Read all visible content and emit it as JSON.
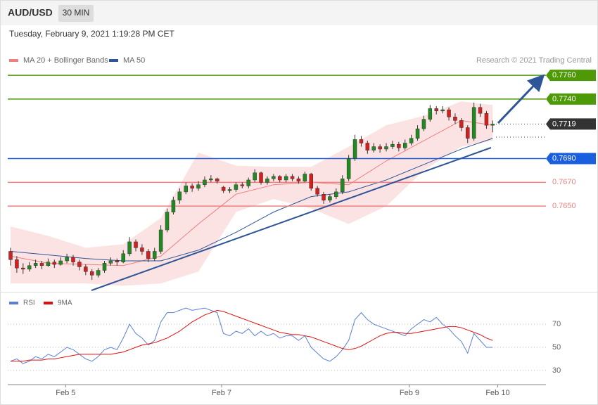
{
  "header": {
    "symbol": "AUD/USD",
    "timeframe": "30 MIN",
    "timestamp": "Tuesday, February 9, 2021 1:19:28 PM CET"
  },
  "chart_data": [
    {
      "type": "candlestick",
      "credit": "Research © 2021 Trading Central",
      "xlim": [
        -0.45,
        85.5
      ],
      "ylim": [
        0.7578,
        0.7802
      ],
      "up_color": "#1f8a1f",
      "down_color": "#d62020",
      "ohlc": [
        [
          0.7612,
          0.7615,
          0.76,
          0.7605
        ],
        [
          0.7605,
          0.7608,
          0.7594,
          0.7598
        ],
        [
          0.7598,
          0.7602,
          0.7593,
          0.7597
        ],
        [
          0.7597,
          0.7603,
          0.7595,
          0.76
        ],
        [
          0.76,
          0.7605,
          0.7598,
          0.7602
        ],
        [
          0.7602,
          0.7604,
          0.7597,
          0.76
        ],
        [
          0.76,
          0.7606,
          0.7599,
          0.7603
        ],
        [
          0.7603,
          0.7605,
          0.7598,
          0.7601
        ],
        [
          0.7601,
          0.7607,
          0.76,
          0.7604
        ],
        [
          0.7604,
          0.761,
          0.7602,
          0.7607
        ],
        [
          0.7607,
          0.7609,
          0.76,
          0.7603
        ],
        [
          0.7603,
          0.7605,
          0.7596,
          0.7599
        ],
        [
          0.7599,
          0.7601,
          0.7592,
          0.7595
        ],
        [
          0.7595,
          0.7597,
          0.7588,
          0.7592
        ],
        [
          0.7592,
          0.7598,
          0.759,
          0.7596
        ],
        [
          0.7596,
          0.7604,
          0.7594,
          0.7602
        ],
        [
          0.7602,
          0.7607,
          0.76,
          0.7604
        ],
        [
          0.7604,
          0.7606,
          0.76,
          0.7603
        ],
        [
          0.7603,
          0.7613,
          0.7602,
          0.761
        ],
        [
          0.761,
          0.7624,
          0.7608,
          0.762
        ],
        [
          0.762,
          0.7622,
          0.7612,
          0.7615
        ],
        [
          0.7615,
          0.7618,
          0.7609,
          0.7612
        ],
        [
          0.7612,
          0.7614,
          0.7603,
          0.7606
        ],
        [
          0.7606,
          0.7615,
          0.7604,
          0.7612
        ],
        [
          0.7612,
          0.7634,
          0.761,
          0.763
        ],
        [
          0.763,
          0.7648,
          0.7628,
          0.7645
        ],
        [
          0.7645,
          0.7658,
          0.7643,
          0.7655
        ],
        [
          0.7655,
          0.7665,
          0.7652,
          0.7662
        ],
        [
          0.7662,
          0.767,
          0.766,
          0.7667
        ],
        [
          0.7667,
          0.7669,
          0.7662,
          0.7665
        ],
        [
          0.7665,
          0.7671,
          0.7663,
          0.7668
        ],
        [
          0.7668,
          0.7675,
          0.7666,
          0.7672
        ],
        [
          0.7672,
          0.7676,
          0.767,
          0.7673
        ],
        [
          0.7673,
          0.7674,
          0.7669,
          0.7671
        ],
        [
          0.7666,
          0.7667,
          0.7661,
          0.7663
        ],
        [
          0.7663,
          0.7666,
          0.7661,
          0.7664
        ],
        [
          0.7664,
          0.767,
          0.7662,
          0.7668
        ],
        [
          0.7668,
          0.767,
          0.7665,
          0.7667
        ],
        [
          0.7667,
          0.7674,
          0.7665,
          0.7672
        ],
        [
          0.7672,
          0.7681,
          0.767,
          0.7678
        ],
        [
          0.7678,
          0.7679,
          0.7668,
          0.767
        ],
        [
          0.767,
          0.7675,
          0.7668,
          0.7673
        ],
        [
          0.7673,
          0.7677,
          0.7671,
          0.7675
        ],
        [
          0.7675,
          0.7676,
          0.767,
          0.7672
        ],
        [
          0.7672,
          0.7677,
          0.767,
          0.7675
        ],
        [
          0.7675,
          0.7677,
          0.7671,
          0.7673
        ],
        [
          0.7673,
          0.7675,
          0.7669,
          0.7671
        ],
        [
          0.7671,
          0.7679,
          0.767,
          0.7677
        ],
        [
          0.7677,
          0.7678,
          0.7663,
          0.7665
        ],
        [
          0.7665,
          0.7667,
          0.7658,
          0.766
        ],
        [
          0.766,
          0.7662,
          0.7652,
          0.7655
        ],
        [
          0.7655,
          0.766,
          0.7653,
          0.7658
        ],
        [
          0.7658,
          0.7665,
          0.7656,
          0.7662
        ],
        [
          0.7662,
          0.7676,
          0.766,
          0.7673
        ],
        [
          0.7673,
          0.7693,
          0.7671,
          0.769
        ],
        [
          0.769,
          0.771,
          0.7688,
          0.7706
        ],
        [
          0.7706,
          0.7709,
          0.77,
          0.7703
        ],
        [
          0.7703,
          0.7705,
          0.7694,
          0.7697
        ],
        [
          0.7697,
          0.7703,
          0.7695,
          0.77
        ],
        [
          0.77,
          0.7702,
          0.7695,
          0.7698
        ],
        [
          0.7698,
          0.7703,
          0.7696,
          0.77
        ],
        [
          0.77,
          0.7705,
          0.7698,
          0.7702
        ],
        [
          0.7702,
          0.7704,
          0.7696,
          0.7699
        ],
        [
          0.7699,
          0.7706,
          0.7697,
          0.7703
        ],
        [
          0.7703,
          0.771,
          0.7701,
          0.7707
        ],
        [
          0.7707,
          0.7718,
          0.7705,
          0.7715
        ],
        [
          0.7715,
          0.7726,
          0.7713,
          0.7723
        ],
        [
          0.7723,
          0.7735,
          0.7721,
          0.7732
        ],
        [
          0.7732,
          0.7734,
          0.7727,
          0.773
        ],
        [
          0.773,
          0.7734,
          0.7728,
          0.7731
        ],
        [
          0.7731,
          0.7733,
          0.7722,
          0.7725
        ],
        [
          0.7725,
          0.7728,
          0.7719,
          0.7722
        ],
        [
          0.7722,
          0.7724,
          0.7713,
          0.7716
        ],
        [
          0.7716,
          0.7718,
          0.7703,
          0.7707
        ],
        [
          0.7707,
          0.7737,
          0.7705,
          0.7733
        ],
        [
          0.7733,
          0.7736,
          0.7725,
          0.7728
        ],
        [
          0.7728,
          0.773,
          0.7715,
          0.7718
        ],
        [
          0.7718,
          0.7722,
          0.7712,
          0.7719
        ]
      ],
      "series": [
        {
          "name": "MA 20 + Bollinger Bands",
          "color": "#f08080",
          "x": [
            0,
            6,
            12,
            18,
            24,
            30,
            36,
            42,
            48,
            54,
            60,
            66,
            72,
            77
          ],
          "values": [
            0.7608,
            0.7602,
            0.7601,
            0.76,
            0.7608,
            0.7635,
            0.766,
            0.7668,
            0.767,
            0.7668,
            0.7688,
            0.7705,
            0.7722,
            0.7718
          ],
          "upper": [
            0.7633,
            0.7625,
            0.7615,
            0.7618,
            0.764,
            0.7695,
            0.7684,
            0.7683,
            0.7683,
            0.77,
            0.7718,
            0.7726,
            0.7738,
            0.7735
          ],
          "lower": [
            0.7585,
            0.7585,
            0.7585,
            0.7583,
            0.7585,
            0.7595,
            0.7645,
            0.7656,
            0.7648,
            0.7635,
            0.765,
            0.768,
            0.77,
            0.7705
          ]
        },
        {
          "name": "MA 50",
          "color": "#2d5597",
          "x": [
            0,
            6,
            12,
            18,
            24,
            30,
            36,
            42,
            48,
            54,
            60,
            66,
            72,
            77
          ],
          "values": [
            0.7612,
            0.7609,
            0.7606,
            0.7604,
            0.7604,
            0.7613,
            0.7628,
            0.7645,
            0.7658,
            0.7662,
            0.7672,
            0.7685,
            0.7698,
            0.7707
          ]
        }
      ],
      "levels": [
        {
          "value": 0.776,
          "label": "0.7760",
          "color": "#4d9a06",
          "boxed": true,
          "dotted": false
        },
        {
          "value": 0.774,
          "label": "0.7740",
          "color": "#4d9a06",
          "boxed": true,
          "dotted": false
        },
        {
          "value": 0.7719,
          "label": "0.7719",
          "color": "#333333",
          "boxed": true,
          "dotted": true
        },
        {
          "value": 0.769,
          "label": "0.7690",
          "color": "#1a5fe0",
          "boxed": true,
          "dotted": false
        },
        {
          "value": 0.767,
          "label": "0.7670",
          "color": "#f08080",
          "boxed": false,
          "dotted": false
        },
        {
          "value": 0.765,
          "label": "0.7650",
          "color": "#f08080",
          "boxed": false,
          "dotted": false
        }
      ]
    },
    {
      "type": "line",
      "xlim": [
        -0.45,
        85.5
      ],
      "ylim": [
        19,
        95
      ],
      "yticks": [
        30,
        50,
        70
      ],
      "xticks": [
        {
          "value": 8.8,
          "label": "Feb 5"
        },
        {
          "value": 33.7,
          "label": "Feb 7"
        },
        {
          "value": 63.7,
          "label": "Feb 9"
        },
        {
          "value": 77.8,
          "label": "Feb 10"
        }
      ],
      "series": [
        {
          "name": "RSI",
          "color": "#5b7fd6",
          "values": [
            38,
            40,
            36,
            38,
            42,
            40,
            44,
            42,
            46,
            50,
            48,
            44,
            40,
            38,
            42,
            48,
            50,
            48,
            58,
            70,
            62,
            58,
            52,
            56,
            72,
            80,
            80,
            82,
            84,
            82,
            83,
            84,
            82,
            80,
            62,
            60,
            64,
            62,
            66,
            60,
            64,
            60,
            62,
            58,
            60,
            60,
            56,
            60,
            50,
            45,
            40,
            38,
            42,
            48,
            56,
            74,
            80,
            74,
            70,
            68,
            66,
            64,
            62,
            60,
            66,
            70,
            74,
            72,
            76,
            70,
            66,
            60,
            55,
            45,
            62,
            56,
            50,
            50
          ]
        },
        {
          "name": "9MA",
          "color": "#e01010",
          "values": [
            38,
            38,
            38,
            39,
            39,
            39,
            40,
            40,
            41,
            42,
            43,
            44,
            44,
            44,
            44,
            44,
            44,
            45,
            46,
            48,
            50,
            52,
            53,
            54,
            56,
            58,
            61,
            64,
            68,
            72,
            75,
            78,
            80,
            82,
            81,
            79,
            77,
            75,
            73,
            71,
            69,
            67,
            65,
            63,
            62,
            61,
            61,
            60,
            59,
            57,
            55,
            53,
            51,
            49,
            48,
            49,
            51,
            54,
            57,
            60,
            62,
            63,
            63,
            62,
            62,
            63,
            64,
            65,
            66,
            67,
            68,
            68,
            67,
            65,
            63,
            61,
            58,
            56
          ]
        }
      ]
    }
  ]
}
